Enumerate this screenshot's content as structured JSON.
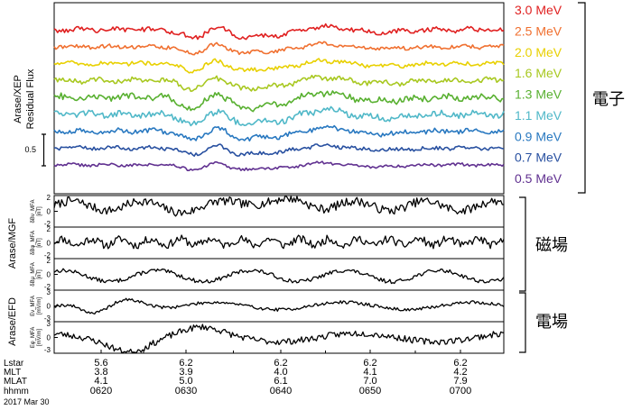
{
  "chart_data": [
    {
      "type": "line",
      "panel": "Arase/XEP",
      "ylabel_line1": "Arase/XEP",
      "ylabel_line2": "Residual Flux",
      "scale_bar_label": "0.5",
      "group_label": "電子",
      "series": [
        {
          "name": "3.0 MeV",
          "color": "#e02020",
          "amp": 1.0
        },
        {
          "name": "2.5 MeV",
          "color": "#f07030",
          "amp": 0.8
        },
        {
          "name": "2.0 MeV",
          "color": "#e8d000",
          "amp": 0.9
        },
        {
          "name": "1.6 MeV",
          "color": "#a8c820",
          "amp": 1.1
        },
        {
          "name": "1.3 MeV",
          "color": "#58b030",
          "amp": 1.4
        },
        {
          "name": "1.1 MeV",
          "color": "#50b8c8",
          "amp": 1.3
        },
        {
          "name": "0.9 MeV",
          "color": "#2878c0",
          "amp": 1.0
        },
        {
          "name": "0.7 MeV",
          "color": "#2850a0",
          "amp": 0.8
        },
        {
          "name": "0.5 MeV",
          "color": "#603090",
          "amp": 0.6
        }
      ]
    },
    {
      "type": "line",
      "panel": "Arase/MGF",
      "ylabel": "Arase/MGF",
      "group_label": "磁場",
      "series": [
        {
          "name": "δBν_MFA",
          "unit": "[nT]",
          "ylim": [
            -2,
            2
          ],
          "yticks": [
            "2",
            "0",
            "-2"
          ]
        },
        {
          "name": "δBφ_MFA",
          "unit": "[nT]",
          "ylim": [
            -2,
            2
          ],
          "yticks": [
            "2",
            "0",
            "-2"
          ]
        },
        {
          "name": "δBμ_MFA",
          "unit": "[nT]",
          "ylim": [
            -2,
            2
          ],
          "yticks": [
            "2",
            "0",
            "-2"
          ]
        }
      ]
    },
    {
      "type": "line",
      "panel": "Arase/EFD",
      "ylabel": "Arase/EFD",
      "group_label": "電場",
      "series": [
        {
          "name": "Eν_MFA",
          "unit": "[mV/m]",
          "ylim": [
            -3,
            3
          ],
          "yticks": [
            "3",
            "0",
            "-3"
          ]
        },
        {
          "name": "Eφ_MFA",
          "unit": "[mV/m]",
          "ylim": [
            -3,
            3
          ],
          "yticks": [
            "3",
            "0",
            "-3"
          ]
        }
      ]
    }
  ],
  "x_axis": {
    "row_labels": [
      "Lstar",
      "MLT",
      "MLAT",
      "hhmm"
    ],
    "columns": [
      {
        "Lstar": "5.6",
        "MLT": "3.8",
        "MLAT": "4.1",
        "hhmm": "0620"
      },
      {
        "Lstar": "6.2",
        "MLT": "3.9",
        "MLAT": "5.0",
        "hhmm": "0630"
      },
      {
        "Lstar": "6.2",
        "MLT": "4.0",
        "MLAT": "6.1",
        "hhmm": "0640"
      },
      {
        "Lstar": "6.2",
        "MLT": "4.1",
        "MLAT": "7.0",
        "hhmm": "0650"
      },
      {
        "Lstar": "6.2",
        "MLT": "4.2",
        "MLAT": "7.9",
        "hhmm": "0700"
      }
    ],
    "date": "2017 Mar 30"
  }
}
